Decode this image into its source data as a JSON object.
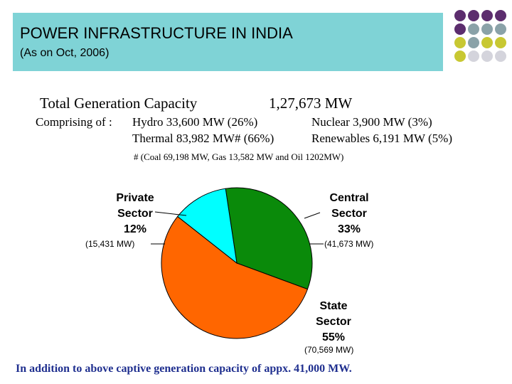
{
  "header": {
    "title": "POWER INFRASTRUCTURE IN INDIA",
    "subtitle": "(As on Oct, 2006)"
  },
  "capacity": {
    "label": "Total Generation Capacity",
    "value": "1,27,673 MW"
  },
  "comprising": {
    "prefix": "Comprising of :",
    "hydro": "Hydro   33,600 MW  (26%)",
    "nuclear": "Nuclear      3,900 MW (3%)",
    "thermal": "Thermal 83,982 MW# (66%)",
    "renewables": "Renewables  6,191 MW (5%)",
    "footnote": "# (Coal 69,198 MW, Gas 13,582 MW and Oil 1202MW)"
  },
  "chart_data": {
    "type": "pie",
    "series": [
      {
        "name_lines": [
          "Central",
          "Sector",
          "33%"
        ],
        "value": 33,
        "mw": "(41,673 MW)",
        "color": "#0a8a0a"
      },
      {
        "name_lines": [
          "State",
          "Sector",
          "55%"
        ],
        "value": 55,
        "mw": "(70,569 MW)",
        "color": "#ff6600"
      },
      {
        "name_lines": [
          "Private",
          "Sector",
          "12%"
        ],
        "value": 12,
        "mw": "(15,431 MW)",
        "color": "#00ffff"
      }
    ]
  },
  "footer": {
    "note": "In addition to above captive generation capacity of appx. 41,000 MW."
  },
  "theme": {
    "title_bg": "#7fd3d6",
    "dot_purple": "#5c2d6e",
    "dot_gray": "#8aa2a8",
    "dot_yellow": "#c8c832",
    "dot_light": "#d4d4dc",
    "note_color": "#1f2f8f"
  }
}
